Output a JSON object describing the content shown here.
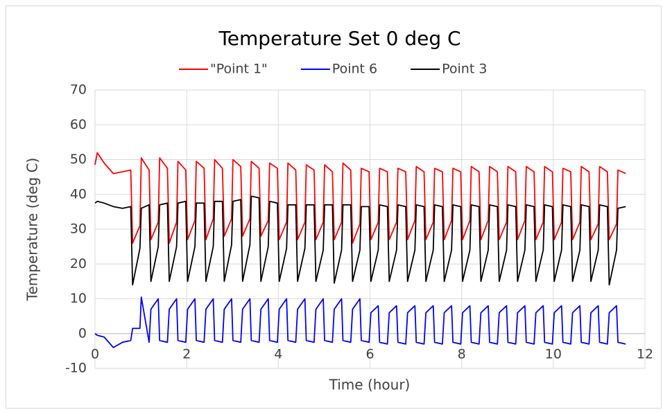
{
  "chart_data": {
    "type": "line",
    "title": "Temperature  Set 0 deg C",
    "x_label": "Time (hour)",
    "y_label": "Temperature (deg C)",
    "xlim": [
      0,
      12
    ],
    "xticks": [
      0,
      2,
      4,
      6,
      8,
      10,
      12
    ],
    "ylim": [
      -10,
      70
    ],
    "yticks": [
      -10,
      0,
      10,
      20,
      30,
      40,
      50,
      60,
      70
    ],
    "grid": true,
    "legend": "top",
    "x": [
      0,
      0.05,
      0.2,
      0.4,
      0.6,
      0.78,
      0.82,
      0.98,
      1.01,
      1.18,
      1.22,
      1.38,
      1.41,
      1.58,
      1.62,
      1.78,
      1.81,
      1.98,
      2.02,
      2.18,
      2.21,
      2.38,
      2.42,
      2.58,
      2.61,
      2.78,
      2.82,
      2.98,
      3.01,
      3.18,
      3.22,
      3.38,
      3.41,
      3.58,
      3.62,
      3.78,
      3.81,
      3.98,
      4.02,
      4.18,
      4.21,
      4.38,
      4.42,
      4.58,
      4.61,
      4.78,
      4.82,
      4.98,
      5.01,
      5.18,
      5.22,
      5.38,
      5.41,
      5.58,
      5.62,
      5.78,
      5.81,
      5.98,
      6.02,
      6.18,
      6.21,
      6.38,
      6.42,
      6.58,
      6.61,
      6.78,
      6.82,
      6.98,
      7.01,
      7.18,
      7.22,
      7.38,
      7.41,
      7.58,
      7.62,
      7.78,
      7.81,
      7.98,
      8.02,
      8.18,
      8.21,
      8.38,
      8.42,
      8.58,
      8.61,
      8.78,
      8.82,
      8.98,
      9.01,
      9.18,
      9.22,
      9.38,
      9.41,
      9.58,
      9.62,
      9.78,
      9.81,
      9.98,
      10.02,
      10.18,
      10.21,
      10.38,
      10.42,
      10.58,
      10.61,
      10.78,
      10.82,
      10.98,
      11.01,
      11.18,
      11.22,
      11.38,
      11.41,
      11.58
    ],
    "series": [
      {
        "name": "\"Point 1\"",
        "color": "#ff0000",
        "values": [
          48.5,
          52,
          49,
          46,
          46.5,
          47,
          26,
          31,
          50.5,
          47,
          27,
          32,
          50.5,
          47.5,
          26,
          32,
          49.5,
          47,
          27,
          32.5,
          49.5,
          47.5,
          27,
          33,
          50,
          47.5,
          28,
          33,
          50,
          48,
          28,
          33,
          49.5,
          47.5,
          28,
          32.5,
          49,
          47.5,
          27,
          32,
          49,
          47,
          27,
          32,
          48.5,
          47,
          27,
          32,
          48.5,
          46.5,
          27,
          32,
          49,
          47,
          26,
          31.5,
          47.5,
          46.5,
          27,
          32,
          47.5,
          46.5,
          27,
          32,
          47.5,
          46.5,
          27,
          32.5,
          48,
          46.5,
          27,
          32,
          47.5,
          46.5,
          27,
          32.5,
          47.5,
          46.5,
          27,
          32.5,
          48,
          46.5,
          27,
          32.5,
          48,
          46.5,
          27,
          32,
          48,
          46.5,
          27,
          32.5,
          48,
          46.5,
          27,
          32,
          48,
          46.5,
          27,
          32,
          47.5,
          46.5,
          27,
          32,
          48,
          46.5,
          27,
          31.5,
          48,
          46.5,
          27,
          31.5,
          47,
          46
        ]
      },
      {
        "name": "Point 6",
        "color": "#0000ff",
        "values": [
          0,
          -0.5,
          -1,
          -4,
          -2.5,
          -2,
          1.5,
          1.5,
          10.5,
          -2.5,
          7,
          10,
          -2,
          -2.5,
          7,
          10,
          -2,
          -2.5,
          7,
          10,
          -2,
          -2.5,
          7,
          10,
          -2,
          -2.5,
          7,
          10,
          -2,
          -2.5,
          7,
          10,
          -2,
          -2.5,
          7,
          10,
          -2,
          -2.5,
          7,
          10,
          -2,
          -2.5,
          7,
          10,
          -2,
          -2.5,
          7,
          10,
          -2,
          -2.5,
          7,
          10,
          -2,
          -2.5,
          7,
          10,
          -2,
          -2.5,
          6,
          8,
          -2.5,
          -3,
          6,
          8,
          -2.5,
          -3,
          6,
          8,
          -2.5,
          -3,
          6,
          8,
          -2.5,
          -3,
          6,
          8,
          -2.5,
          -3,
          6,
          8,
          -2.5,
          -3,
          6,
          8,
          -2.5,
          -3,
          6,
          8,
          -2.5,
          -3,
          6,
          8,
          -2.5,
          -3,
          6,
          8,
          -2.5,
          -3,
          6,
          8,
          -2.5,
          -3,
          6,
          8,
          -2.5,
          -3,
          6,
          8,
          -2.5,
          -3,
          6,
          8,
          -2.5,
          -3
        ]
      },
      {
        "name": "Point 3",
        "color": "#000000",
        "values": [
          37.5,
          38,
          37.5,
          36.5,
          36,
          36.5,
          14,
          24.5,
          36,
          37,
          15,
          25,
          37,
          37.5,
          15,
          25,
          37.5,
          38,
          15,
          25,
          37.5,
          37.5,
          15,
          25,
          38,
          38,
          15,
          25.5,
          38,
          38.5,
          15,
          25.5,
          39.5,
          39,
          15,
          25,
          38,
          37.5,
          15,
          24.5,
          37,
          37,
          15,
          24.5,
          37,
          37,
          15,
          24,
          37,
          37,
          14.5,
          24,
          37,
          37,
          15,
          24,
          36.5,
          36.5,
          15,
          24,
          37,
          36.5,
          15,
          24,
          37,
          36.5,
          15,
          24,
          37,
          36.5,
          15,
          24,
          37,
          36.5,
          15,
          24,
          37,
          36.5,
          15,
          24,
          37,
          36.5,
          15,
          24,
          37,
          36.5,
          15,
          24,
          37,
          36.5,
          15,
          24,
          37,
          36.5,
          15,
          24,
          37,
          36.5,
          15,
          24,
          37,
          36.5,
          15,
          24,
          37,
          36.5,
          15,
          24,
          37,
          36.5,
          14,
          24,
          36,
          36.5
        ]
      }
    ]
  }
}
